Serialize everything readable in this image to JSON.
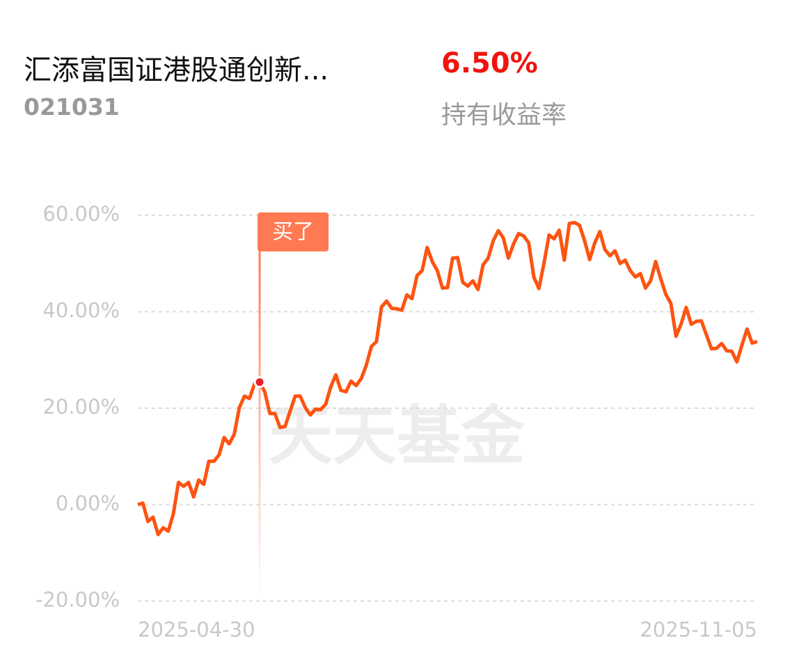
{
  "header": {
    "title": "汇添富国证港股通创新...",
    "code": "021031",
    "return_value": "6.50%",
    "return_label": "持有收益率"
  },
  "watermark": "天天基金",
  "chart_data": {
    "type": "line",
    "categories": [
      "2025-04-30",
      null,
      null,
      null,
      null,
      null,
      null,
      null,
      null,
      null,
      null,
      null,
      null,
      null,
      null,
      null,
      null,
      null,
      null,
      null,
      null,
      null,
      null,
      null,
      null,
      null,
      null,
      null,
      null,
      null,
      null,
      null,
      null,
      null,
      null,
      null,
      null,
      null,
      null,
      null,
      null,
      null,
      null,
      null,
      null,
      null,
      null,
      null,
      null,
      null,
      null,
      null,
      null,
      null,
      null,
      null,
      null,
      null,
      null,
      null,
      null,
      null,
      null,
      null,
      null,
      null,
      null,
      null,
      null,
      null,
      null,
      null,
      null,
      null,
      null,
      null,
      null,
      null,
      null,
      null,
      null,
      null,
      null,
      null,
      null,
      null,
      null,
      null,
      null,
      null,
      null,
      null,
      null,
      null,
      null,
      null,
      null,
      null,
      null,
      null,
      null,
      null,
      null,
      null,
      null,
      null,
      null,
      null,
      null,
      null,
      null,
      null,
      null,
      null,
      null,
      null,
      null,
      null,
      null,
      null,
      null,
      null,
      "2025-11-05"
    ],
    "values": [
      0.0,
      0.3,
      -3.5,
      -2.6,
      -6.2,
      -4.8,
      -5.5,
      -1.9,
      4.6,
      3.8,
      4.6,
      1.6,
      5.1,
      4.2,
      9.0,
      9.0,
      10.3,
      13.9,
      12.6,
      14.6,
      20.1,
      22.5,
      22.0,
      25.1,
      25.4,
      23.4,
      18.9,
      18.9,
      16.0,
      16.2,
      19.4,
      22.5,
      22.5,
      20.1,
      18.6,
      19.8,
      19.7,
      20.8,
      24.4,
      26.9,
      23.7,
      23.4,
      25.6,
      24.7,
      26.1,
      28.9,
      32.8,
      33.8,
      41.0,
      42.2,
      40.7,
      40.6,
      40.3,
      43.5,
      42.7,
      47.5,
      48.5,
      53.3,
      50.4,
      48.5,
      44.9,
      45.0,
      51.1,
      51.2,
      46.1,
      45.3,
      46.4,
      44.6,
      49.7,
      51.1,
      54.7,
      56.8,
      55.3,
      51.1,
      54.0,
      56.2,
      55.7,
      54.3,
      47.2,
      44.8,
      50.0,
      55.9,
      55.1,
      56.9,
      50.7,
      58.3,
      58.5,
      57.9,
      54.7,
      50.8,
      54.3,
      56.6,
      52.9,
      51.6,
      52.6,
      50.0,
      50.7,
      48.5,
      47.2,
      47.9,
      44.9,
      46.4,
      50.4,
      46.8,
      43.6,
      41.7,
      34.9,
      37.4,
      40.9,
      37.4,
      38.0,
      38.1,
      35.2,
      32.3,
      32.4,
      33.4,
      31.9,
      31.8,
      29.6,
      33.1,
      36.4,
      33.5,
      33.8
    ],
    "color": "#fc5412",
    "ylim": [
      -20,
      60
    ],
    "yticks": [
      {
        "value": -20,
        "label": "-20.00%"
      },
      {
        "value": 0,
        "label": "0.00%"
      },
      {
        "value": 20,
        "label": "20.00%"
      },
      {
        "value": 40,
        "label": "40.00%"
      },
      {
        "value": 60,
        "label": "60.00%"
      }
    ],
    "grid": true,
    "buy_marker": {
      "label": "买了",
      "category_index": 24
    }
  }
}
